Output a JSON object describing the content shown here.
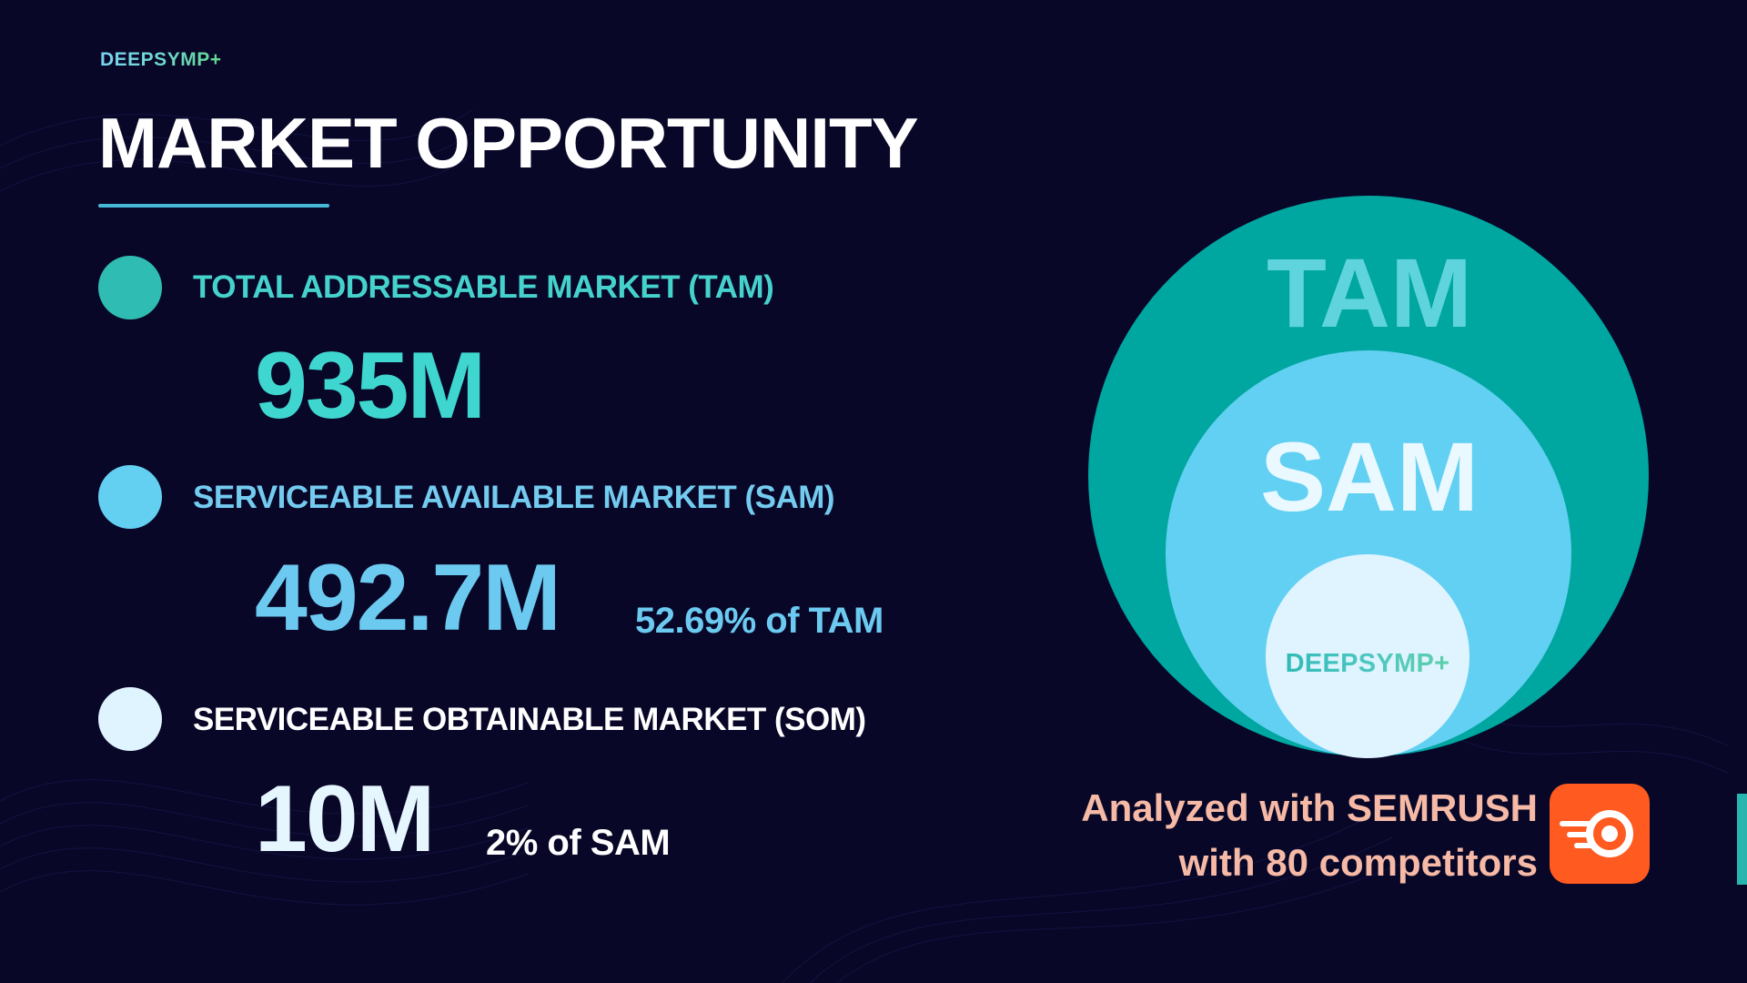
{
  "brand": {
    "name": "DEEPSYMP+"
  },
  "title": "MARKET OPPORTUNITY",
  "markets": {
    "tam": {
      "label": "TOTAL ADDRESSABLE MARKET (TAM)",
      "value": "935M"
    },
    "sam": {
      "label": "SERVICEABLE AVAILABLE MARKET (SAM)",
      "value": "492.7M",
      "share": "52.69% of TAM"
    },
    "som": {
      "label": "SERVICEABLE OBTAINABLE MARKET (SOM)",
      "value": "10M",
      "share": "2% of SAM"
    }
  },
  "diagram": {
    "tam_label": "TAM",
    "sam_label": "SAM",
    "som_label": "DEEPSYMP+"
  },
  "note": {
    "line1": "Analyzed with SEMRUSH",
    "line2": "with 80 competitors",
    "logo_icon": "semrush-logo-icon"
  },
  "colors": {
    "background": "#080728",
    "tam": "#00a6a0",
    "sam": "#62d0f2",
    "som": "#dff4ff",
    "note": "#f5b9a5",
    "semrush": "#ff5a1f"
  }
}
